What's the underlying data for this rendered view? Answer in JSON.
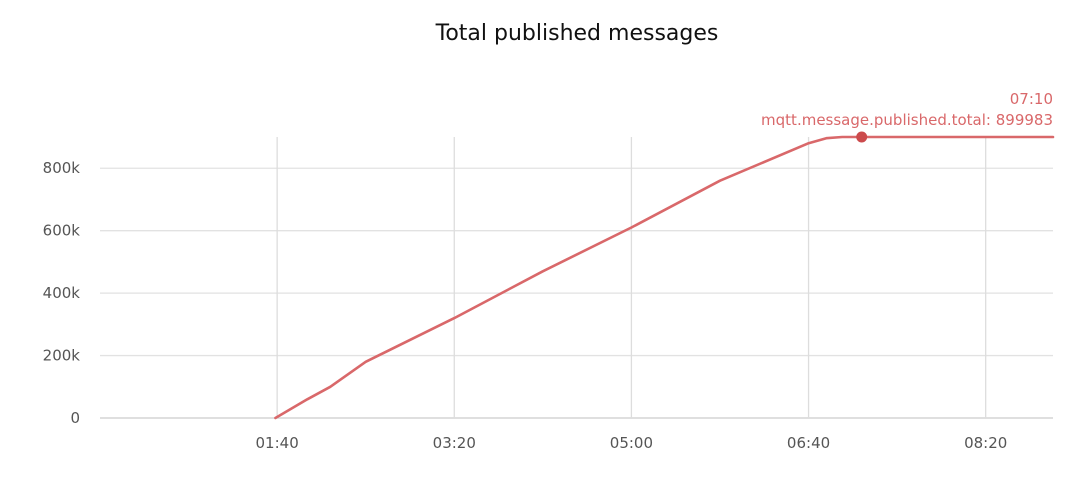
{
  "chart_data": {
    "type": "line",
    "title": "Total published messages",
    "xlabel": "",
    "ylabel": "",
    "x_ticks": [
      "01:40",
      "03:20",
      "05:00",
      "06:40",
      "08:20"
    ],
    "y_ticks": [
      "0",
      "200k",
      "400k",
      "600k",
      "800k"
    ],
    "y_tick_values": [
      0,
      200000,
      400000,
      600000,
      800000
    ],
    "ylim": [
      0,
      900000
    ],
    "xlim_minutes": [
      0,
      538
    ],
    "grid": true,
    "series": [
      {
        "name": "mqtt.message.published.total",
        "color": "#d9686a",
        "x_minutes": [
          99,
          117,
          130,
          150,
          200,
          250,
          300,
          350,
          400,
          410,
          419,
          427,
          538
        ],
        "values": [
          0,
          60000,
          100000,
          180000,
          320000,
          470000,
          610000,
          760000,
          880000,
          896000,
          899983,
          899983,
          899983
        ]
      }
    ],
    "highlight": {
      "x_minutes": 430,
      "time_label": "07:10",
      "series_label": "mqtt.message.published.total: 899983",
      "value": 899983
    }
  }
}
